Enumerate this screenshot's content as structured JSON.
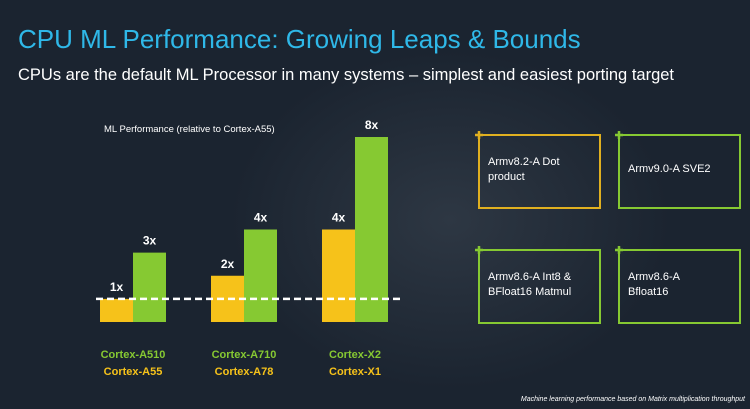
{
  "title": "CPU ML Performance: Growing Leaps & Bounds",
  "subtitle": "CPUs are the default ML Processor in many systems – simplest and easiest porting target",
  "chart_data": {
    "type": "bar",
    "y_label": "ML Performance (relative to Cortex-A55)",
    "ylim": [
      0,
      8
    ],
    "reference_line": 1,
    "series": [
      {
        "color": "#f6c21a",
        "values": [
          1,
          2,
          4
        ],
        "value_labels": [
          "1x",
          "2x",
          "4x"
        ],
        "labels": [
          "Cortex-A55",
          "Cortex-A78",
          "Cortex-X1"
        ]
      },
      {
        "color": "#86c932",
        "values": [
          3,
          4,
          8
        ],
        "value_labels": [
          "3x",
          "4x",
          "8x"
        ],
        "labels": [
          "Cortex-A510",
          "Cortex-A710",
          "Cortex-X2"
        ]
      }
    ]
  },
  "features": [
    {
      "color": "#e0b020",
      "lines": [
        "Armv8.2-A Dot",
        "product"
      ]
    },
    {
      "color": "#86c932",
      "lines": [
        "Armv9.0-A SVE2"
      ]
    },
    {
      "color": "#86c932",
      "lines": [
        "Armv8.6-A Int8 &",
        "BFloat16 Matmul"
      ]
    },
    {
      "color": "#86c932",
      "lines": [
        "Armv8.6-A",
        "Bfloat16"
      ]
    }
  ],
  "footnote": "Machine learning performance based on Matrix multiplication throughput"
}
